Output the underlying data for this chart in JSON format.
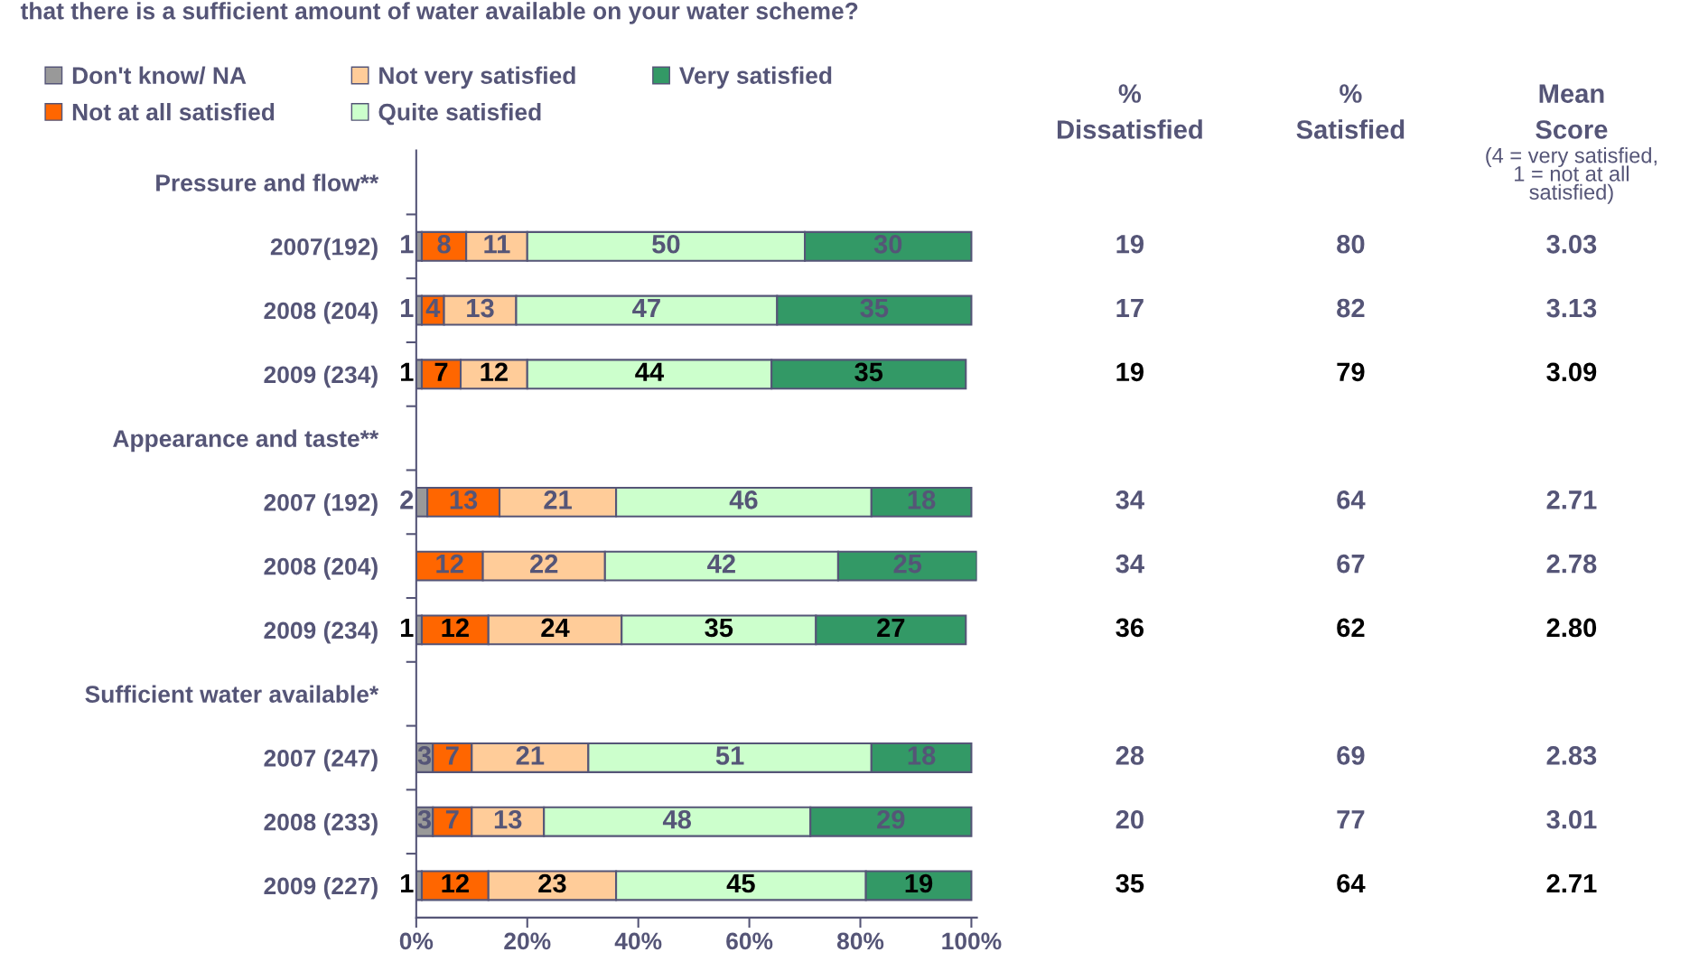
{
  "chart_data": [
    {
      "type": "bar",
      "orientation": "horizontal",
      "stacked": true,
      "title": "that there is a sufficient amount of water available on your water scheme?",
      "categories": [
        "Pressure and flow**",
        "2007(192)",
        "2008 (204)",
        "2009 (234)",
        "Appearance and taste**",
        "2007 (192)",
        "2008 (204)",
        "2009 (234)",
        "Sufficient water available*",
        "2007 (247)",
        "2008 (233)",
        "2009 (227)"
      ],
      "series": [
        {
          "name": "Don't know/ NA",
          "color": "#999999",
          "values": [
            null,
            1,
            1,
            1,
            null,
            2,
            null,
            1,
            null,
            3,
            3,
            1
          ]
        },
        {
          "name": "Not at all satisfied",
          "color": "#ff6600",
          "values": [
            null,
            8,
            4,
            7,
            null,
            13,
            12,
            12,
            null,
            7,
            7,
            12
          ]
        },
        {
          "name": "Not very satisfied",
          "color": "#ffcc99",
          "values": [
            null,
            11,
            13,
            12,
            null,
            21,
            22,
            24,
            null,
            21,
            13,
            23
          ]
        },
        {
          "name": "Quite satisfied",
          "color": "#ccffcc",
          "values": [
            null,
            50,
            47,
            44,
            null,
            46,
            42,
            35,
            null,
            51,
            48,
            45
          ]
        },
        {
          "name": "Very satisfied",
          "color": "#339966",
          "values": [
            null,
            30,
            35,
            35,
            null,
            18,
            25,
            27,
            null,
            18,
            29,
            19
          ]
        }
      ],
      "data_labels": true,
      "xlim": [
        0,
        101
      ],
      "xticks": [
        {
          "value": 0,
          "label": "0%"
        },
        {
          "value": 20,
          "label": "20%"
        },
        {
          "value": 40,
          "label": "40%"
        },
        {
          "value": 60,
          "label": "60%"
        },
        {
          "value": 80,
          "label": "80%"
        },
        {
          "value": 100,
          "label": "100%"
        }
      ],
      "grid": false,
      "legend": "top left"
    },
    {
      "type": "other",
      "categories": [
        "%\nDissatisfied",
        "%\nSatisfied",
        "Mean\nScore"
      ],
      "series": [
        {
          "values": [
            null,
            null,
            null
          ]
        },
        {
          "values": [
            19,
            80,
            3.03
          ]
        },
        {
          "values": [
            17,
            82,
            3.13
          ]
        },
        {
          "values": [
            19,
            79,
            3.09
          ]
        },
        {
          "values": [
            null,
            null,
            null
          ]
        },
        {
          "values": [
            34,
            64,
            2.71
          ]
        },
        {
          "values": [
            34,
            67,
            2.78
          ]
        },
        {
          "values": [
            36,
            62,
            2.8
          ],
          "value_labels": [
            "36",
            "62",
            "2.80"
          ]
        },
        {
          "values": [
            null,
            null,
            null
          ]
        },
        {
          "values": [
            28,
            69,
            2.83
          ]
        },
        {
          "values": [
            20,
            77,
            3.01
          ]
        },
        {
          "values": [
            35,
            64,
            2.71
          ]
        }
      ],
      "data_labels": true,
      "annotations": [
        "(4 = very satisfied,\n1 = not at all\nsatisfied)"
      ]
    }
  ]
}
